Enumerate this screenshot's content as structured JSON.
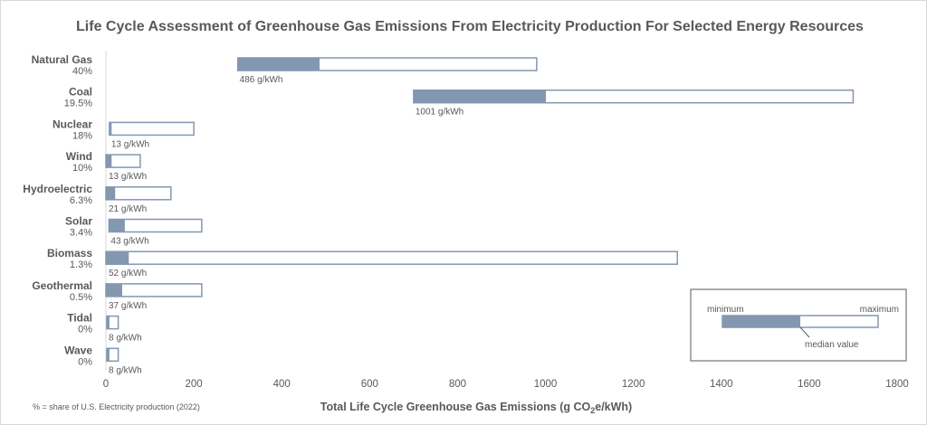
{
  "chart_data": {
    "type": "bar",
    "subtype": "floating range bar (min-median-max)",
    "title": "Life Cycle Assessment of Greenhouse Gas Emissions From Electricity Production For Selected Energy Resources",
    "xlabel": "Total Life Cycle Greenhouse Gas Emissions (g CO2e/kWh)",
    "xlim": [
      0,
      1800
    ],
    "xticks": [
      0,
      200,
      400,
      600,
      800,
      1000,
      1200,
      1400,
      1600,
      1800
    ],
    "grid": false,
    "footnote": "% = share of U.S. Electricity production (2022)",
    "colors": {
      "median_fill": "#8497b0",
      "bar_border": "#8497b0",
      "text": "#595959"
    },
    "categories": [
      {
        "name": "Natural Gas",
        "share": "40%",
        "min": 300,
        "median": 486,
        "max": 980,
        "label": "486 g/kWh"
      },
      {
        "name": "Coal",
        "share": "19.5%",
        "min": 700,
        "median": 1001,
        "max": 1700,
        "label": "1001 g/kWh"
      },
      {
        "name": "Nuclear",
        "share": "18%",
        "min": 8,
        "median": 13,
        "max": 200,
        "label": "13 g/kWh"
      },
      {
        "name": "Wind",
        "share": "10%",
        "min": 0,
        "median": 13,
        "max": 78,
        "label": "13 g/kWh"
      },
      {
        "name": "Hydroelectric",
        "share": "6.3%",
        "min": 0,
        "median": 21,
        "max": 148,
        "label": "21 g/kWh"
      },
      {
        "name": "Solar",
        "share": "3.4%",
        "min": 7,
        "median": 43,
        "max": 218,
        "label": "43 g/kWh"
      },
      {
        "name": "Biomass",
        "share": "1.3%",
        "min": 0,
        "median": 52,
        "max": 1300,
        "label": "52 g/kWh"
      },
      {
        "name": "Geothermal",
        "share": "0.5%",
        "min": 0,
        "median": 37,
        "max": 218,
        "label": "37 g/kWh"
      },
      {
        "name": "Tidal",
        "share": "0%",
        "min": 2,
        "median": 8,
        "max": 28,
        "label": "8 g/kWh"
      },
      {
        "name": "Wave",
        "share": "0%",
        "min": 2,
        "median": 8,
        "max": 28,
        "label": "8 g/kWh"
      }
    ],
    "legend": {
      "placement": "bottom-right",
      "minimum": "minimum",
      "maximum": "maximum",
      "median": "median value"
    }
  }
}
